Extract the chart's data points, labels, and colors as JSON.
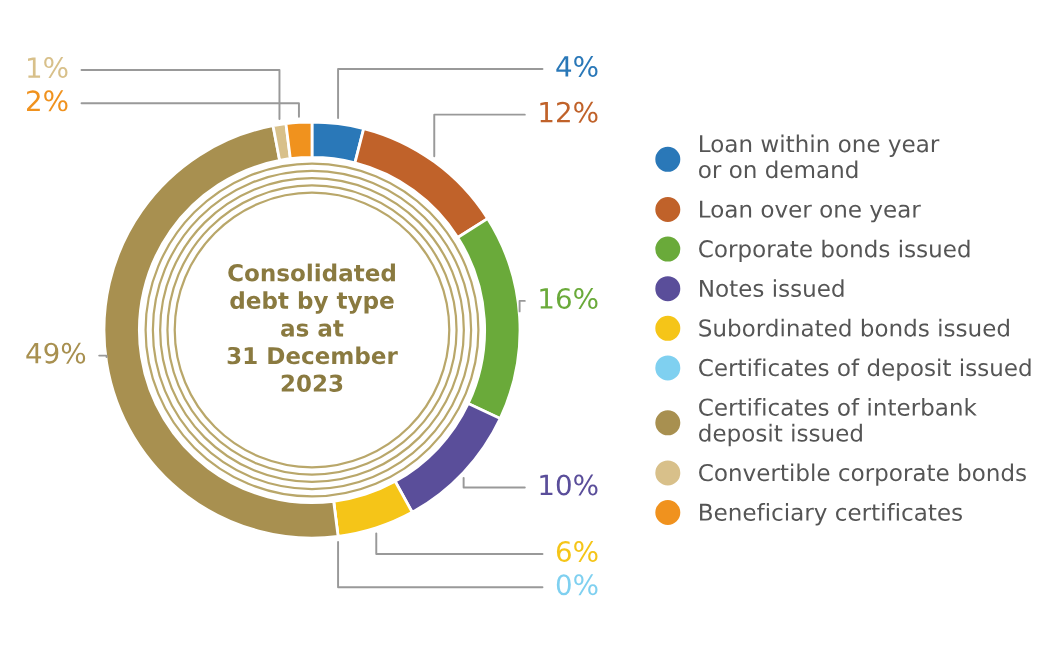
{
  "chart_data": {
    "type": "donut",
    "title": "Consolidated\ndebt by type\nas at\n31 December\n2023",
    "categories": [
      "Loan within one year\nor on demand",
      "Loan over one year",
      "Corporate bonds issued",
      "Notes issued",
      "Subordinated bonds issued",
      "Certificates of deposit issued",
      "Certificates of interbank\ndeposit issued",
      "Convertible corporate bonds",
      "Beneficiary certificates"
    ],
    "values": [
      4,
      12,
      16,
      10,
      6,
      0,
      49,
      1,
      2
    ],
    "value_labels": [
      "4%",
      "12%",
      "16%",
      "10%",
      "6%",
      "0%",
      "49%",
      "1%",
      "2%"
    ],
    "colors": [
      "#2a78b8",
      "#c0622a",
      "#6aaa3a",
      "#5a4e9a",
      "#f5c518",
      "#7fd0f0",
      "#a89050",
      "#d8c08a",
      "#f0921e"
    ],
    "legend": "right"
  }
}
